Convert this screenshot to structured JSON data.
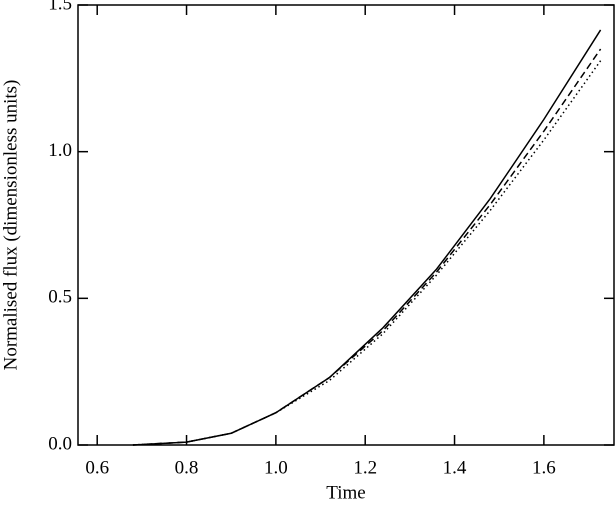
{
  "chart_data": {
    "type": "line",
    "xlabel": "Time",
    "ylabel": "Normalised flux (dimensionless units)",
    "x": [
      0.68,
      0.8,
      0.9,
      1.0,
      1.12,
      1.24,
      1.36,
      1.48,
      1.6,
      1.727
    ],
    "series": [
      {
        "color": "#000000",
        "dash": "solid",
        "values": [
          0,
          0.01,
          0.04,
          0.11,
          0.23,
          0.4,
          0.6,
          0.84,
          1.11,
          1.415
        ]
      },
      {
        "color": "#000000",
        "dash": "dashed",
        "values": [
          0,
          0.01,
          0.04,
          0.11,
          0.23,
          0.39,
          0.59,
          0.82,
          1.07,
          1.35
        ]
      },
      {
        "color": "#000000",
        "dash": "dotted",
        "values": [
          0,
          0.01,
          0.04,
          0.11,
          0.22,
          0.38,
          0.58,
          0.8,
          1.04,
          1.31
        ]
      }
    ],
    "xlim": [
      0.557,
      1.757
    ],
    "ylim": [
      0,
      1.5
    ],
    "xticks": [
      0.6,
      0.8,
      {
        "value": 1,
        "label": "1.0"
      },
      1.2,
      1.4,
      1.6
    ],
    "yticks": [
      {
        "value": 0,
        "label": "0.0"
      },
      0.5,
      {
        "value": 1,
        "label": "1.0"
      },
      1.5
    ]
  }
}
